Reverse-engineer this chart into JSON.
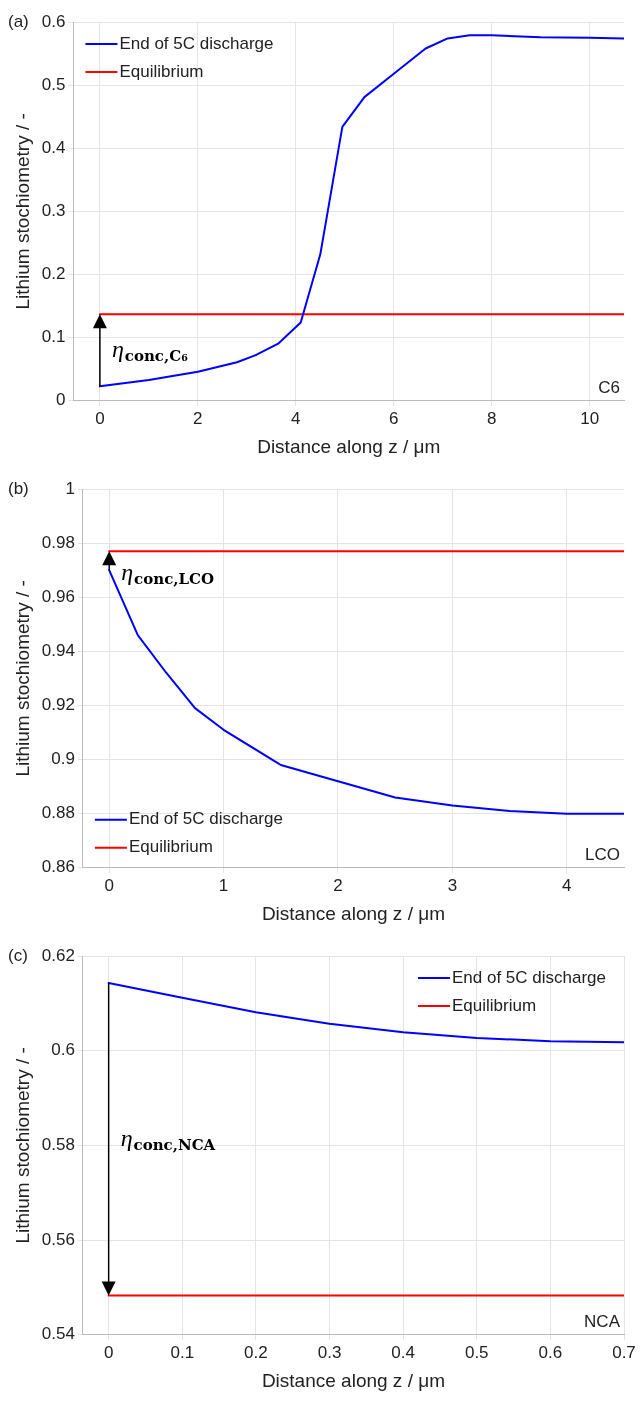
{
  "chart_data": [
    {
      "type": "line",
      "xlabel": "Distance along z / μm",
      "ylabel": "Lithium stochiometry / -",
      "x": [
        0,
        1,
        2,
        2.8,
        3.2,
        3.65,
        4.1,
        4.5,
        4.95,
        5.4,
        6,
        6.65,
        7.1,
        7.55,
        8,
        9,
        10,
        10.7
      ],
      "series": [
        {
          "name": "End of 5C discharge",
          "color": "#0000ff",
          "values": [
            0.023,
            0.033,
            0.046,
            0.061,
            0.073,
            0.091,
            0.124,
            0.232,
            0.434,
            0.481,
            0.518,
            0.558,
            0.574,
            0.579,
            0.579,
            0.576,
            0.575,
            0.574
          ]
        },
        {
          "name": "Equilibrium",
          "color": "#ff0000",
          "x": [
            0,
            10.7
          ],
          "values": [
            0.137,
            0.137
          ]
        }
      ],
      "xlim": [
        -0.54,
        10.7
      ],
      "xticks": [
        0,
        2,
        4,
        6,
        8,
        10
      ],
      "ylim": [
        0,
        0.6
      ],
      "yticks": [
        0,
        0.1,
        0.2,
        0.3,
        0.4,
        0.5,
        0.6
      ],
      "grid": true,
      "legend": "top left",
      "marker": "none",
      "line_style": "solid",
      "annotations": [
        "(a)",
        "C6",
        "η$_{conc,C₆}$"
      ]
    },
    {
      "type": "line",
      "xlabel": "Distance along z / μm",
      "ylabel": "Lithium stochiometry / -",
      "x": [
        0,
        0.25,
        0.5,
        0.75,
        1,
        1.5,
        2,
        2.5,
        3,
        3.5,
        4,
        4.5
      ],
      "series": [
        {
          "name": "End of 5C discharge",
          "color": "#0000ff",
          "values": [
            0.97,
            0.946,
            0.932,
            0.919,
            0.911,
            0.898,
            0.892,
            0.886,
            0.883,
            0.881,
            0.88,
            0.88
          ]
        },
        {
          "name": "Equilibrium",
          "color": "#ff0000",
          "x": [
            0,
            4.5
          ],
          "values": [
            0.977,
            0.977
          ]
        }
      ],
      "xlim": [
        -0.23,
        4.5
      ],
      "xticks": [
        0,
        1,
        2,
        3,
        4
      ],
      "ylim": [
        0.86,
        1
      ],
      "yticks": [
        0.86,
        0.88,
        0.9,
        0.92,
        0.94,
        0.96,
        0.98,
        1
      ],
      "grid": true,
      "legend": "bottom left",
      "marker": "none",
      "line_style": "solid",
      "annotations": [
        "(b)",
        "LCO",
        "η$_{conc,LCO}$"
      ]
    },
    {
      "type": "line",
      "xlabel": "Distance along z / μm",
      "ylabel": "Lithium stochiometry / -",
      "x": [
        0,
        0.1,
        0.2,
        0.3,
        0.4,
        0.5,
        0.6,
        0.7
      ],
      "series": [
        {
          "name": "End of 5C discharge",
          "color": "#0000ff",
          "values": [
            0.6143,
            0.6112,
            0.6081,
            0.6057,
            0.6039,
            0.6027,
            0.602,
            0.6018
          ]
        },
        {
          "name": "Equilibrium",
          "color": "#ff0000",
          "x": [
            0,
            0.7
          ],
          "values": [
            0.5483,
            0.5483
          ]
        }
      ],
      "xlim": [
        -0.035,
        0.7
      ],
      "xticks": [
        0,
        0.1,
        0.2,
        0.3,
        0.4,
        0.5,
        0.6,
        0.7
      ],
      "ylim": [
        0.54,
        0.62
      ],
      "yticks": [
        0.54,
        0.56,
        0.58,
        0.6,
        0.62
      ],
      "grid": true,
      "legend": "top right",
      "marker": "none",
      "line_style": "solid",
      "annotations": [
        "(c)",
        "NCA",
        "η$_{conc,NCA}$"
      ]
    }
  ]
}
